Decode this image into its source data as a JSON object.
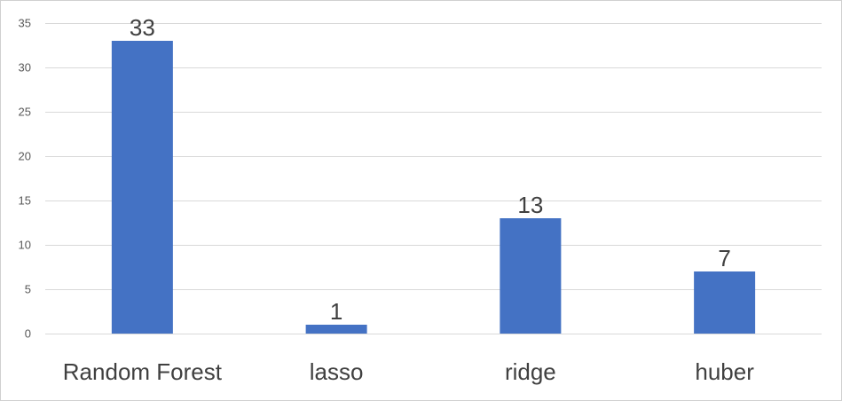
{
  "chart_data": {
    "type": "bar",
    "title": "",
    "xlabel": "",
    "ylabel": "",
    "categories": [
      "Random Forest",
      "lasso",
      "ridge",
      "huber"
    ],
    "values": [
      33,
      1,
      13,
      7
    ],
    "data_labels": [
      "33",
      "1",
      "13",
      "7"
    ],
    "ylim": [
      0,
      35
    ],
    "yticks": [
      0,
      5,
      10,
      15,
      20,
      25,
      30,
      35
    ],
    "grid": true,
    "legend": "none",
    "bar_color": "#4472C4"
  }
}
